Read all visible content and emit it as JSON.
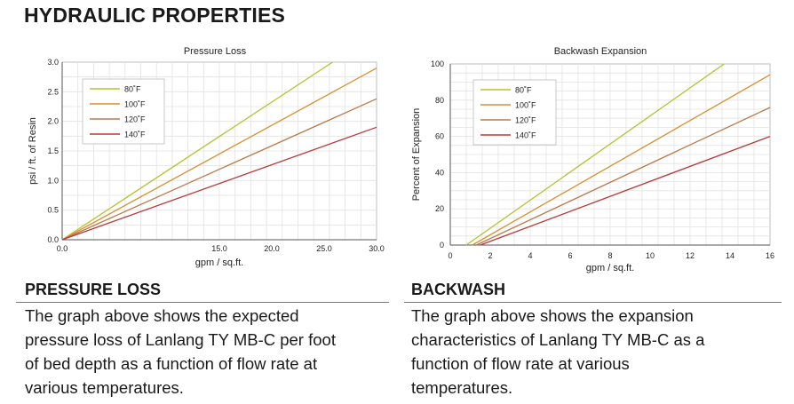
{
  "heading": "HYDRAULIC PROPERTIES",
  "colors": {
    "80F": "#b5c230",
    "100F": "#d6902e",
    "120F": "#ba7a4a",
    "140F": "#b83a3a"
  },
  "chart_data": [
    {
      "type": "line",
      "title": "Pressure Loss",
      "xlabel": "gpm / sq.ft.",
      "ylabel": "psi / ft. of Resin",
      "xlim": [
        0,
        30
      ],
      "ylim": [
        0,
        3
      ],
      "xticks": [
        "0.0",
        "15.0",
        "20.0",
        "25.0",
        "30.0"
      ],
      "xtick_values": [
        0,
        15,
        20,
        25,
        30
      ],
      "yticks": [
        "0.0",
        "0.5",
        "1.0",
        "1.5",
        "2.0",
        "2.5",
        "3.0"
      ],
      "ytick_values": [
        0,
        0.5,
        1,
        1.5,
        2,
        2.5,
        3
      ],
      "grid": true,
      "legend_position": "top-left",
      "series": [
        {
          "name": "80˚F",
          "color": "#b5c230",
          "x": [
            0,
            25.8
          ],
          "y": [
            0,
            3.0
          ]
        },
        {
          "name": "100˚F",
          "color": "#d6902e",
          "x": [
            0,
            30
          ],
          "y": [
            0,
            2.9
          ]
        },
        {
          "name": "120˚F",
          "color": "#ba7a4a",
          "x": [
            0,
            30
          ],
          "y": [
            0,
            2.38
          ]
        },
        {
          "name": "140˚F",
          "color": "#b83a3a",
          "x": [
            0,
            30
          ],
          "y": [
            0,
            1.9
          ]
        }
      ]
    },
    {
      "type": "line",
      "title": "Backwash Expansion",
      "xlabel": "gpm / sq.ft.",
      "ylabel": "Percent of Expansion",
      "xlim": [
        0,
        16
      ],
      "ylim": [
        0,
        100
      ],
      "xticks": [
        "0",
        "2",
        "4",
        "6",
        "8",
        "10",
        "12",
        "14",
        "16"
      ],
      "xtick_values": [
        0,
        2,
        4,
        6,
        8,
        10,
        12,
        14,
        16
      ],
      "yticks": [
        "0",
        "20",
        "40",
        "60",
        "80",
        "100"
      ],
      "ytick_values": [
        0,
        20,
        40,
        60,
        80,
        100
      ],
      "grid": true,
      "legend_position": "top-left",
      "series": [
        {
          "name": "80˚F",
          "color": "#b5c230",
          "x": [
            0.8,
            13.7
          ],
          "y": [
            0,
            100
          ]
        },
        {
          "name": "100˚F",
          "color": "#d6902e",
          "x": [
            1.1,
            16
          ],
          "y": [
            0,
            94
          ]
        },
        {
          "name": "120˚F",
          "color": "#ba7a4a",
          "x": [
            1.3,
            16
          ],
          "y": [
            0,
            76
          ]
        },
        {
          "name": "140˚F",
          "color": "#b83a3a",
          "x": [
            1.5,
            16
          ],
          "y": [
            0,
            60
          ]
        }
      ]
    }
  ],
  "sections": [
    {
      "title": "PRESSURE LOSS",
      "lines": [
        "The graph above shows the expected",
        "pressure loss of Lanlang TY MB-C per foot",
        "of bed depth as a function of flow rate at",
        "various temperatures."
      ]
    },
    {
      "title": "BACKWASH",
      "lines": [
        "The graph above shows the expansion",
        "characteristics of Lanlang TY MB-C as a",
        "function of flow rate at various",
        "temperatures."
      ]
    }
  ]
}
